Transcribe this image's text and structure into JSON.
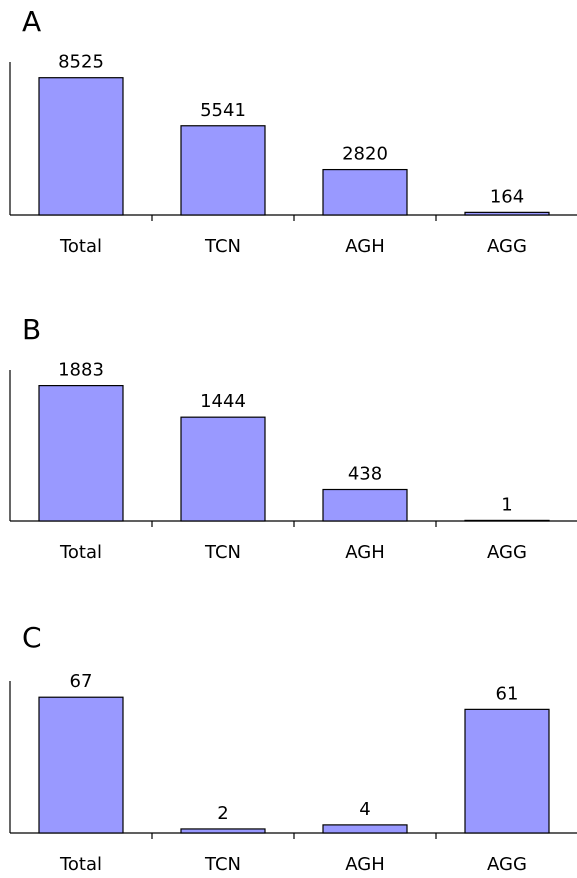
{
  "colors": {
    "bar_fill": "#9999ff",
    "bar_stroke": "#000000",
    "axis": "#000000"
  },
  "chart_data": [
    {
      "panel": "A",
      "type": "bar",
      "categories": [
        "Total",
        "TCN",
        "AGH",
        "AGG"
      ],
      "values": [
        8525,
        5541,
        2820,
        164
      ],
      "value_labels": [
        "8525",
        "5541",
        "2820",
        "164"
      ],
      "title": "",
      "xlabel": "",
      "ylabel": "",
      "ylim": [
        0,
        9500
      ],
      "grid": false,
      "legend": "none",
      "y_ticks_shown": false
    },
    {
      "panel": "B",
      "type": "bar",
      "categories": [
        "Total",
        "TCN",
        "AGH",
        "AGG"
      ],
      "values": [
        1883,
        1444,
        438,
        1
      ],
      "value_labels": [
        "1883",
        "1444",
        "438",
        "1"
      ],
      "title": "",
      "xlabel": "",
      "ylabel": "",
      "ylim": [
        0,
        2100
      ],
      "grid": false,
      "legend": "none",
      "y_ticks_shown": false
    },
    {
      "panel": "C",
      "type": "bar",
      "categories": [
        "Total",
        "TCN",
        "AGH",
        "AGG"
      ],
      "values": [
        67,
        2,
        4,
        61
      ],
      "value_labels": [
        "67",
        "2",
        "4",
        "61"
      ],
      "title": "",
      "xlabel": "",
      "ylabel": "",
      "ylim": [
        0,
        75
      ],
      "grid": false,
      "legend": "none",
      "y_ticks_shown": false
    }
  ]
}
